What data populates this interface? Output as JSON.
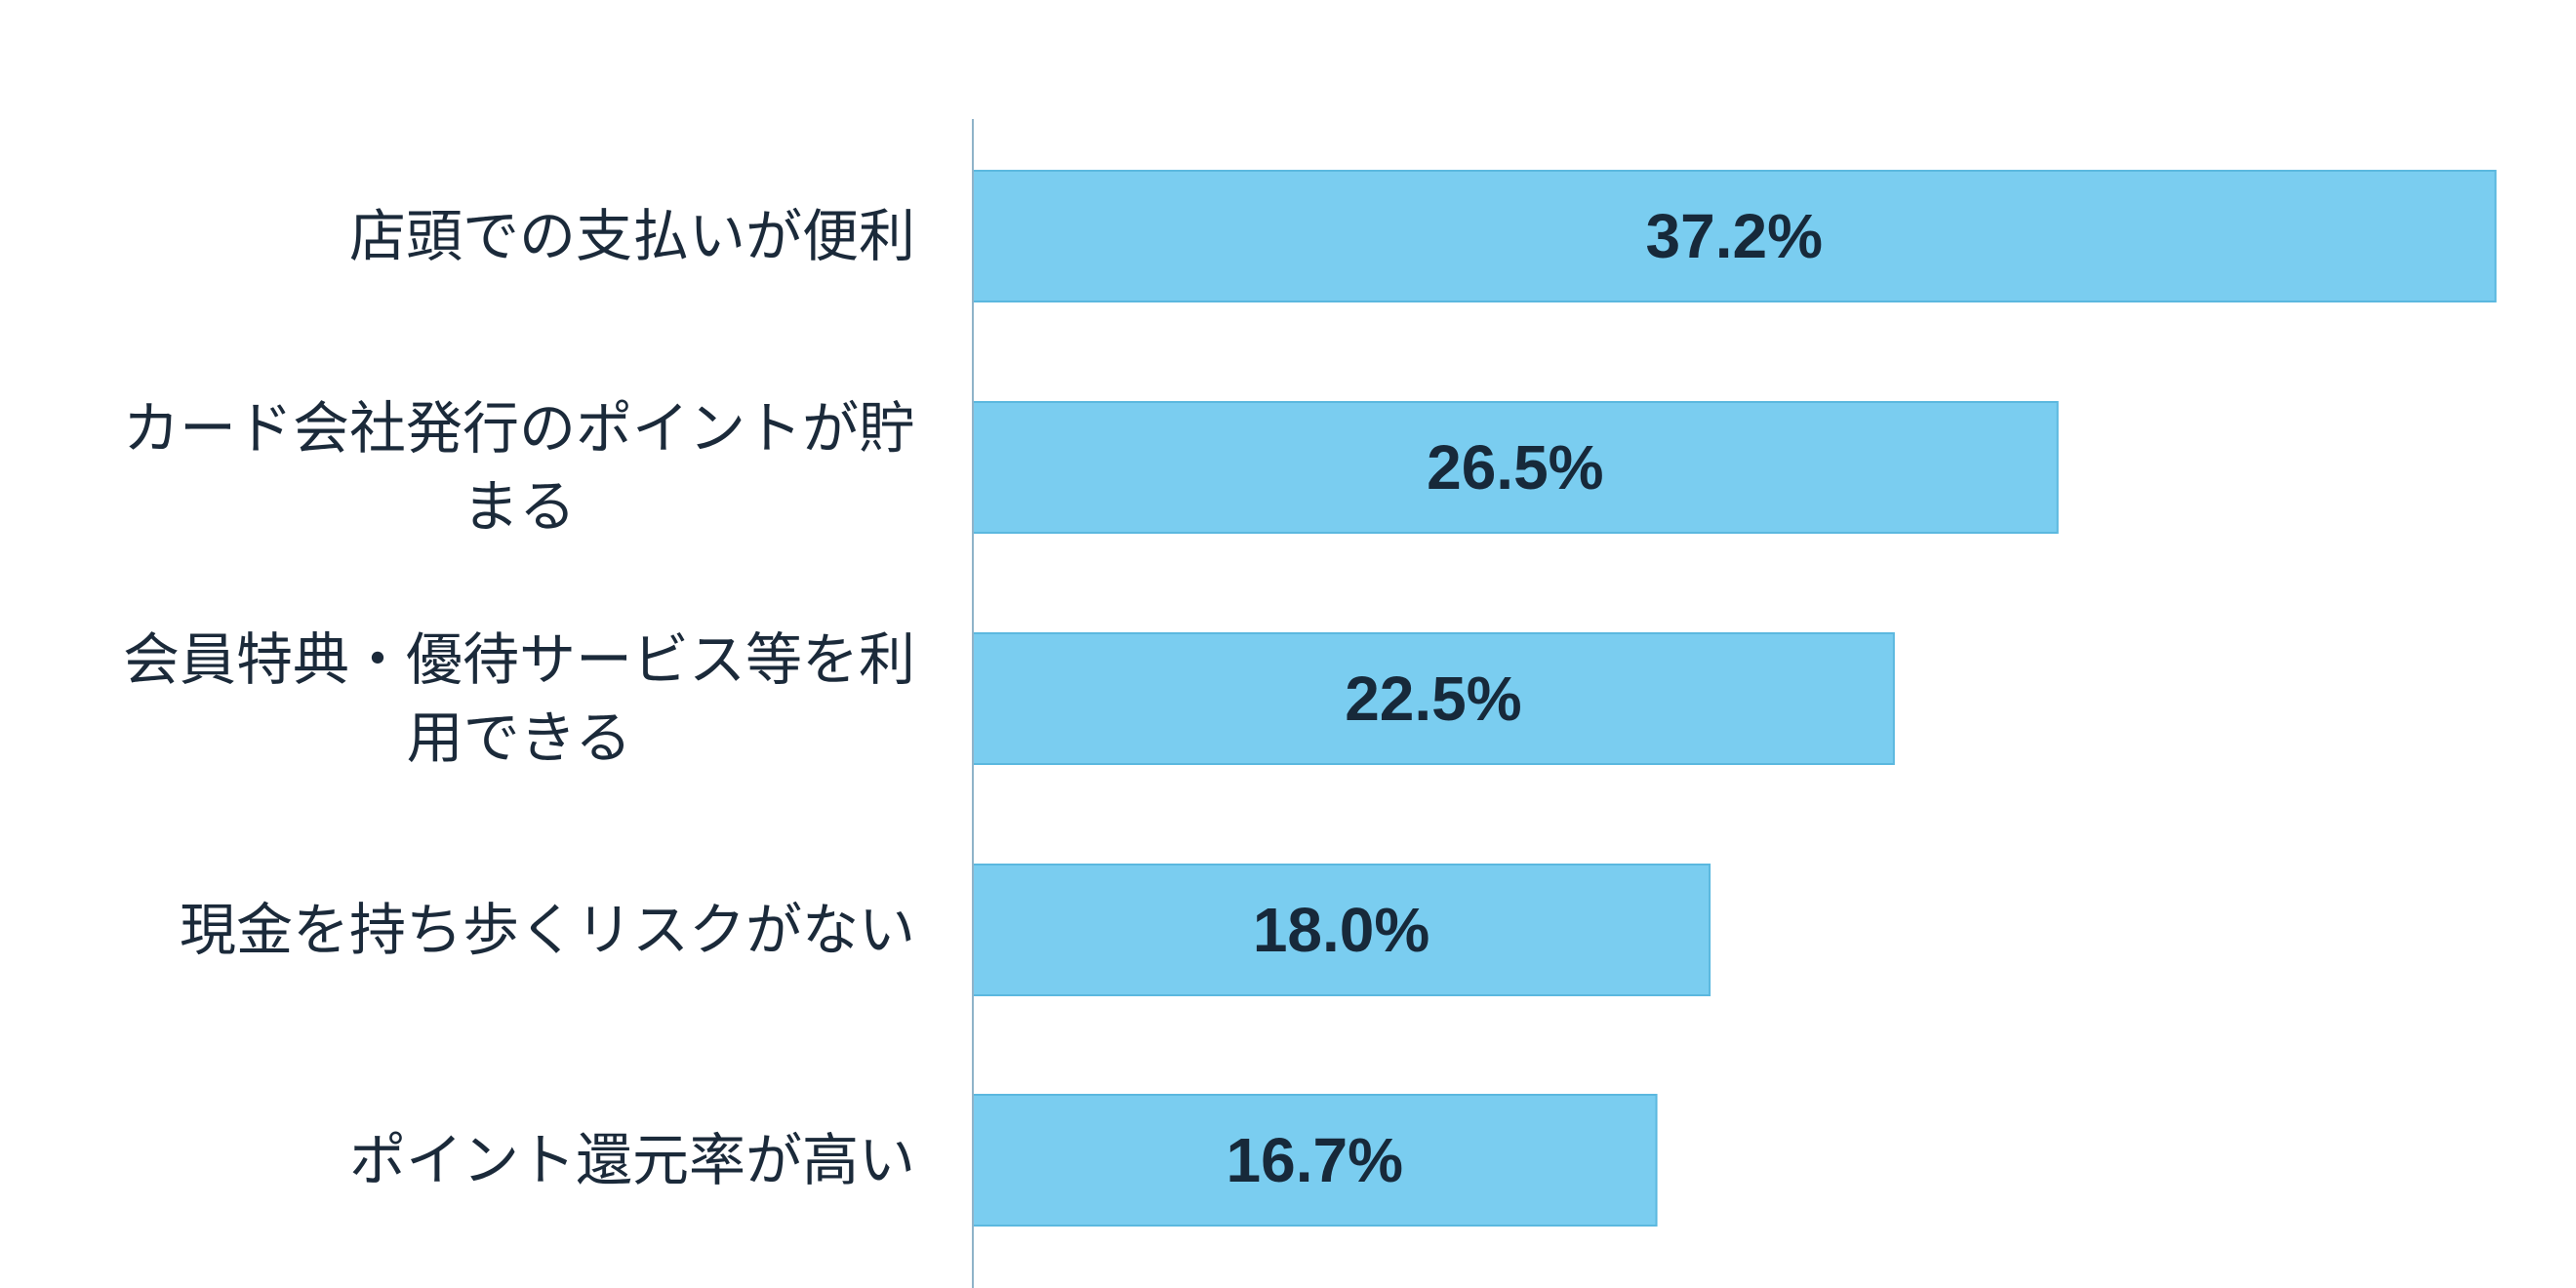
{
  "chart_data": {
    "type": "bar",
    "orientation": "horizontal",
    "categories": [
      "店頭での支払いが便利",
      "カード会社発行のポイントが貯まる",
      "会員特典・優待サービス等を利用できる",
      "現金を持ち歩くリスクがない",
      "ポイント還元率が高い"
    ],
    "category_lines": [
      [
        "店頭での支払いが便利"
      ],
      [
        "カード会社発行のポイントが貯",
        "まる"
      ],
      [
        "会員特典・優待サービス等を利",
        "用できる"
      ],
      [
        "現金を持ち歩くリスクがない"
      ],
      [
        "ポイント還元率が高い"
      ]
    ],
    "values": [
      37.2,
      26.5,
      22.5,
      18.0,
      16.7
    ],
    "value_labels": [
      "37.2%",
      "26.5%",
      "22.5%",
      "18.0%",
      "16.7%"
    ],
    "unit": "%",
    "xlim": [
      0,
      40
    ],
    "title": "",
    "xlabel": "",
    "ylabel": "",
    "grid": false,
    "legend": "none",
    "colors": {
      "bar": "#7acdf0",
      "bar_edge": "#5bb8df",
      "axis": "#8fb3c9",
      "label_text": "#1b2a3a",
      "value_text": "#17293a"
    }
  }
}
